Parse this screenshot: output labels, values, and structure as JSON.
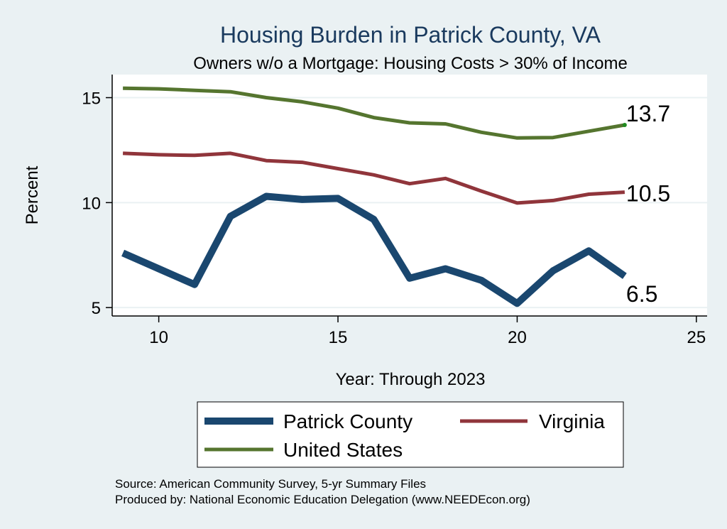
{
  "chart_data": {
    "type": "line",
    "title": "Housing Burden in Patrick County, VA",
    "subtitle": "Owners w/o a Mortgage: Housing Costs > 30% of Income",
    "xlabel": "Year: Through 2023",
    "ylabel": "Percent",
    "xlim": [
      8.7,
      25.3
    ],
    "ylim": [
      4.6,
      16.1
    ],
    "xticks": [
      10,
      15,
      20,
      25
    ],
    "yticks": [
      5,
      10,
      15
    ],
    "grid": true,
    "legend_position": "bottom",
    "x": [
      9,
      10,
      11,
      12,
      13,
      14,
      15,
      16,
      17,
      18,
      19,
      20,
      21,
      22,
      23
    ],
    "series": [
      {
        "name": "Patrick County",
        "color": "#1a476f",
        "values": [
          7.6,
          6.85,
          6.1,
          9.35,
          10.3,
          10.15,
          10.2,
          9.2,
          6.4,
          6.85,
          6.3,
          5.2,
          6.75,
          7.7,
          6.5
        ],
        "end_label": "6.5"
      },
      {
        "name": "Virginia",
        "color": "#90353b",
        "values": [
          12.35,
          12.28,
          12.25,
          12.35,
          12.0,
          11.92,
          11.62,
          11.32,
          10.9,
          11.15,
          10.55,
          9.98,
          10.1,
          10.4,
          10.5
        ],
        "end_label": "10.5"
      },
      {
        "name": "United States",
        "color": "#55752f",
        "values": [
          15.45,
          15.42,
          15.35,
          15.28,
          15.0,
          14.8,
          14.5,
          14.05,
          13.8,
          13.75,
          13.35,
          13.08,
          13.1,
          13.4,
          13.7
        ],
        "end_label": "13.7"
      }
    ],
    "notes": [
      "Source: American Community Survey, 5-yr Summary Files",
      "Produced by: National Economic Education Delegation (www.NEEDEcon.org)"
    ]
  }
}
